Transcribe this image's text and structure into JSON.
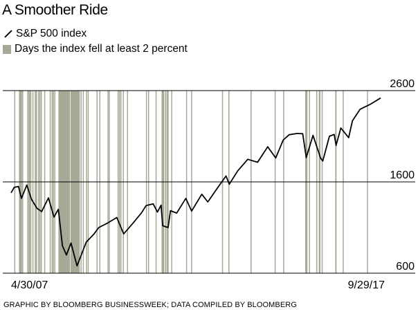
{
  "chart_data": {
    "type": "line",
    "title": "A Smoother Ride",
    "legend": [
      {
        "name": "S&P 500 index",
        "swatch": "line"
      },
      {
        "name": "Days the index fell at least 2 percent",
        "swatch": "bar"
      }
    ],
    "legend_placement": "top-left",
    "xlabel": "",
    "ylabel": "",
    "x_tick_labels": [
      "4/30/07",
      "9/29/17"
    ],
    "xlim": [
      "2007-04-30",
      "2017-09-29"
    ],
    "y_ticks": [
      600,
      1600,
      2600
    ],
    "ylim": [
      600,
      2600
    ],
    "grid": "horizontal gridlines at y ticks",
    "colors": {
      "line": "#000000",
      "bar": "#a7a996",
      "grid": "#000000"
    },
    "series": [
      {
        "name": "S&P 500 index",
        "x": [
          "2007-04-30",
          "2007-06-01",
          "2007-07-15",
          "2007-08-15",
          "2007-10-09",
          "2007-11-26",
          "2008-01-22",
          "2008-03-10",
          "2008-05-19",
          "2008-07-15",
          "2008-08-29",
          "2008-10-10",
          "2008-11-20",
          "2009-01-06",
          "2009-03-09",
          "2009-06-12",
          "2009-08-31",
          "2009-10-19",
          "2010-01-19",
          "2010-04-23",
          "2010-07-02",
          "2010-09-30",
          "2010-12-31",
          "2011-02-18",
          "2011-05-02",
          "2011-06-15",
          "2011-07-22",
          "2011-08-08",
          "2011-10-03",
          "2011-10-27",
          "2011-12-30",
          "2012-04-02",
          "2012-06-01",
          "2012-09-14",
          "2012-11-15",
          "2013-01-31",
          "2013-05-21",
          "2013-06-24",
          "2013-09-18",
          "2013-12-31",
          "2014-04-11",
          "2014-07-24",
          "2014-10-15",
          "2014-12-31",
          "2015-03-02",
          "2015-05-21",
          "2015-07-20",
          "2015-08-25",
          "2015-11-03",
          "2016-01-20",
          "2016-02-11",
          "2016-04-20",
          "2016-06-08",
          "2016-06-27",
          "2016-08-15",
          "2016-11-04",
          "2016-12-13",
          "2017-03-01",
          "2017-06-19",
          "2017-09-29"
        ],
        "y": [
          1480,
          1540,
          1550,
          1420,
          1565,
          1410,
          1310,
          1275,
          1425,
          1215,
          1300,
          900,
          800,
          930,
          680,
          940,
          1030,
          1100,
          1150,
          1210,
          1030,
          1140,
          1258,
          1340,
          1360,
          1270,
          1345,
          1120,
          1100,
          1285,
          1258,
          1420,
          1280,
          1465,
          1380,
          1500,
          1665,
          1575,
          1720,
          1848,
          1815,
          1985,
          1862,
          2058,
          2117,
          2130,
          2128,
          1867,
          2110,
          1860,
          1829,
          2100,
          2120,
          2000,
          2190,
          2085,
          2270,
          2395,
          2453,
          2519
        ]
      }
    ],
    "decline_days": [
      "2007-06-07",
      "2007-07-26",
      "2007-08-02",
      "2007-08-09",
      "2007-08-15",
      "2007-08-28",
      "2007-10-19",
      "2007-11-01",
      "2007-11-07",
      "2007-11-19",
      "2007-12-11",
      "2008-01-04",
      "2008-01-15",
      "2008-01-17",
      "2008-02-07",
      "2008-02-21",
      "2008-03-06",
      "2008-04-10",
      "2008-06-06",
      "2008-06-26",
      "2008-07-09",
      "2008-07-24",
      "2008-09-04",
      "2008-09-09",
      "2008-09-12",
      "2008-09-16",
      "2008-09-19",
      "2008-09-24",
      "2008-09-29",
      "2008-10-02",
      "2008-10-06",
      "2008-10-10",
      "2008-10-15",
      "2008-10-20",
      "2008-10-24",
      "2008-10-28",
      "2008-11-03",
      "2008-11-06",
      "2008-11-11",
      "2008-11-14",
      "2008-11-19",
      "2008-11-25",
      "2008-12-01",
      "2008-12-04",
      "2008-12-10",
      "2008-12-15",
      "2008-12-22",
      "2009-01-07",
      "2009-01-14",
      "2009-01-21",
      "2009-01-28",
      "2009-02-04",
      "2009-02-10",
      "2009-02-17",
      "2009-02-25",
      "2009-03-04",
      "2009-03-10",
      "2009-03-18",
      "2009-03-25",
      "2009-04-01",
      "2009-04-20",
      "2009-05-13",
      "2009-06-15",
      "2009-07-02",
      "2009-10-01",
      "2009-10-30",
      "2010-01-22",
      "2010-02-04",
      "2010-05-06",
      "2010-05-20",
      "2010-06-04",
      "2010-06-29",
      "2010-08-11",
      "2011-02-22",
      "2011-03-16",
      "2011-06-01",
      "2011-08-02",
      "2011-08-04",
      "2011-08-08",
      "2011-08-10",
      "2011-08-18",
      "2011-09-06",
      "2011-09-22",
      "2011-10-03",
      "2011-11-09",
      "2012-04-10",
      "2012-06-01",
      "2013-04-15",
      "2013-06-20",
      "2014-02-03",
      "2014-10-09",
      "2015-01-05",
      "2015-08-20",
      "2015-08-24",
      "2015-09-01",
      "2015-09-28",
      "2015-12-11",
      "2016-01-07",
      "2016-01-13",
      "2016-02-05",
      "2016-06-24",
      "2016-06-27",
      "2016-09-09",
      "2017-05-17"
    ]
  },
  "footer": {
    "source": "GRAPHIC BY BLOOMBERG BUSINESSWEEK; DATA COMPILED BY BLOOMBERG"
  }
}
